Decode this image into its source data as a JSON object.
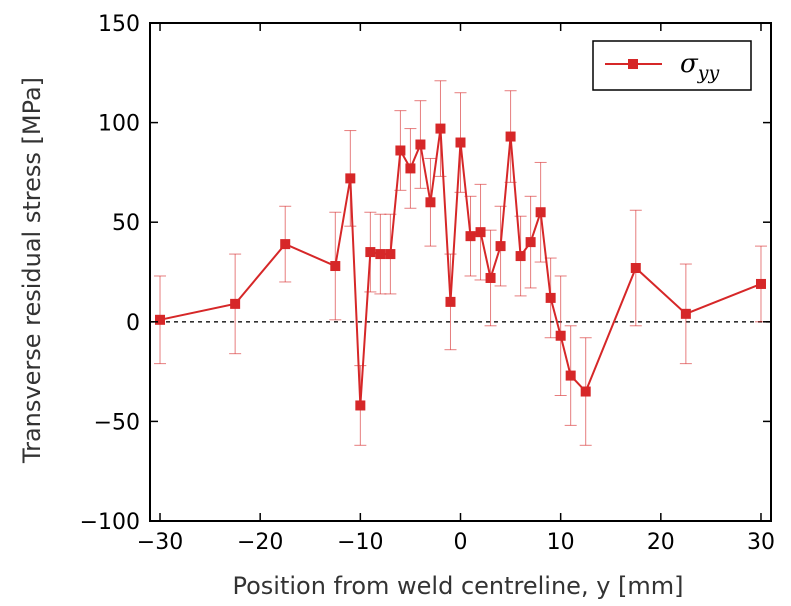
{
  "chart_data": {
    "type": "line",
    "xlabel": "Position from weld centreline, y [mm]",
    "ylabel": "Transverse residual stress [MPa]",
    "xlim": [
      -31,
      31
    ],
    "ylim": [
      -100,
      150
    ],
    "xticks": [
      -30,
      -20,
      -10,
      0,
      10,
      20,
      30
    ],
    "yticks": [
      -100,
      -50,
      0,
      50,
      100,
      150
    ],
    "xtick_labels": [
      "−30",
      "−20",
      "−10",
      "0",
      "10",
      "20",
      "30"
    ],
    "ytick_labels": [
      "−100",
      "−50",
      "0",
      "50",
      "100",
      "150"
    ],
    "grid": false,
    "reference_line": {
      "y": 0,
      "style": "dashed"
    },
    "legend": {
      "position": "top-right",
      "symbol": "σ",
      "subscript": "yy"
    },
    "series": [
      {
        "name": "σ_yy",
        "color": "#d62728",
        "marker": "square",
        "points": [
          {
            "x": -30,
            "y": 1,
            "err": 22
          },
          {
            "x": -22.5,
            "y": 9,
            "err": 25
          },
          {
            "x": -17.5,
            "y": 39,
            "err": 19
          },
          {
            "x": -12.5,
            "y": 28,
            "err": 27
          },
          {
            "x": -11,
            "y": 72,
            "err": 24
          },
          {
            "x": -10,
            "y": -42,
            "err": 20
          },
          {
            "x": -9,
            "y": 35,
            "err": 20
          },
          {
            "x": -8,
            "y": 34,
            "err": 20
          },
          {
            "x": -7,
            "y": 34,
            "err": 20
          },
          {
            "x": -6,
            "y": 86,
            "err": 20
          },
          {
            "x": -5,
            "y": 77,
            "err": 20
          },
          {
            "x": -4,
            "y": 89,
            "err": 22
          },
          {
            "x": -3,
            "y": 60,
            "err": 22
          },
          {
            "x": -2,
            "y": 97,
            "err": 24
          },
          {
            "x": -1,
            "y": 10,
            "err": 24
          },
          {
            "x": 0,
            "y": 90,
            "err": 25
          },
          {
            "x": 1,
            "y": 43,
            "err": 20
          },
          {
            "x": 2,
            "y": 45,
            "err": 24
          },
          {
            "x": 3,
            "y": 22,
            "err": 24
          },
          {
            "x": 4,
            "y": 38,
            "err": 20
          },
          {
            "x": 5,
            "y": 93,
            "err": 23
          },
          {
            "x": 6,
            "y": 33,
            "err": 20
          },
          {
            "x": 7,
            "y": 40,
            "err": 23
          },
          {
            "x": 8,
            "y": 55,
            "err": 25
          },
          {
            "x": 9,
            "y": 12,
            "err": 20
          },
          {
            "x": 10,
            "y": -7,
            "err": 30
          },
          {
            "x": 11,
            "y": -27,
            "err": 25
          },
          {
            "x": 12.5,
            "y": -35,
            "err": 27
          },
          {
            "x": 17.5,
            "y": 27,
            "err": 29
          },
          {
            "x": 22.5,
            "y": 4,
            "err": 25
          },
          {
            "x": 30,
            "y": 19,
            "err": 19
          }
        ]
      }
    ]
  }
}
